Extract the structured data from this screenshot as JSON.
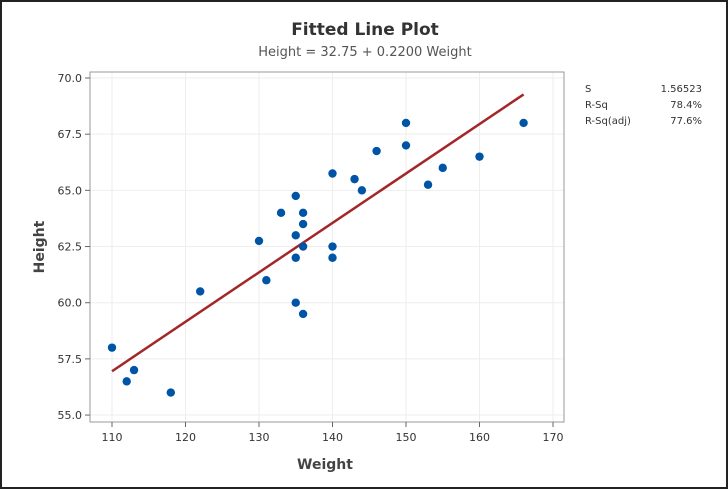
{
  "chart_data": {
    "type": "scatter",
    "title": "Fitted Line Plot",
    "subtitle": "Height = 32.75 + 0.2200 Weight",
    "xlabel": "Weight",
    "ylabel": "Height",
    "xlim": [
      105,
      171
    ],
    "ylim": [
      54.7,
      70.3
    ],
    "xticks": [
      "110",
      "120",
      "130",
      "140",
      "150",
      "160",
      "170"
    ],
    "yticks": [
      "55.0",
      "57.5",
      "60.0",
      "62.5",
      "65.0",
      "67.5",
      "70.0"
    ],
    "grid": true,
    "points": [
      [
        110,
        58.0
      ],
      [
        112,
        56.5
      ],
      [
        113,
        57.0
      ],
      [
        118,
        56.0
      ],
      [
        122,
        60.5
      ],
      [
        130,
        62.75
      ],
      [
        131,
        61.0
      ],
      [
        133,
        64.0
      ],
      [
        135,
        64.75
      ],
      [
        135,
        63.0
      ],
      [
        135,
        62.0
      ],
      [
        135,
        60.0
      ],
      [
        136,
        64.0
      ],
      [
        136,
        63.5
      ],
      [
        136,
        62.5
      ],
      [
        136,
        59.5
      ],
      [
        140,
        65.75
      ],
      [
        140,
        62.5
      ],
      [
        140,
        62.0
      ],
      [
        143,
        65.5
      ],
      [
        144,
        65.0
      ],
      [
        146,
        66.75
      ],
      [
        150,
        68.0
      ],
      [
        150,
        67.0
      ],
      [
        153,
        65.25
      ],
      [
        155,
        66.0
      ],
      [
        160,
        66.5
      ],
      [
        166,
        68.0
      ]
    ],
    "fit": {
      "intercept": 32.75,
      "slope": 0.22,
      "x_range": [
        110,
        166
      ]
    },
    "stats": [
      {
        "label": "S",
        "value": "1.56523"
      },
      {
        "label": "R-Sq",
        "value": "78.4%"
      },
      {
        "label": "R-Sq(adj)",
        "value": "77.6%"
      }
    ],
    "colors": {
      "points": "#0054a6",
      "fit_line": "#a3272a"
    }
  }
}
